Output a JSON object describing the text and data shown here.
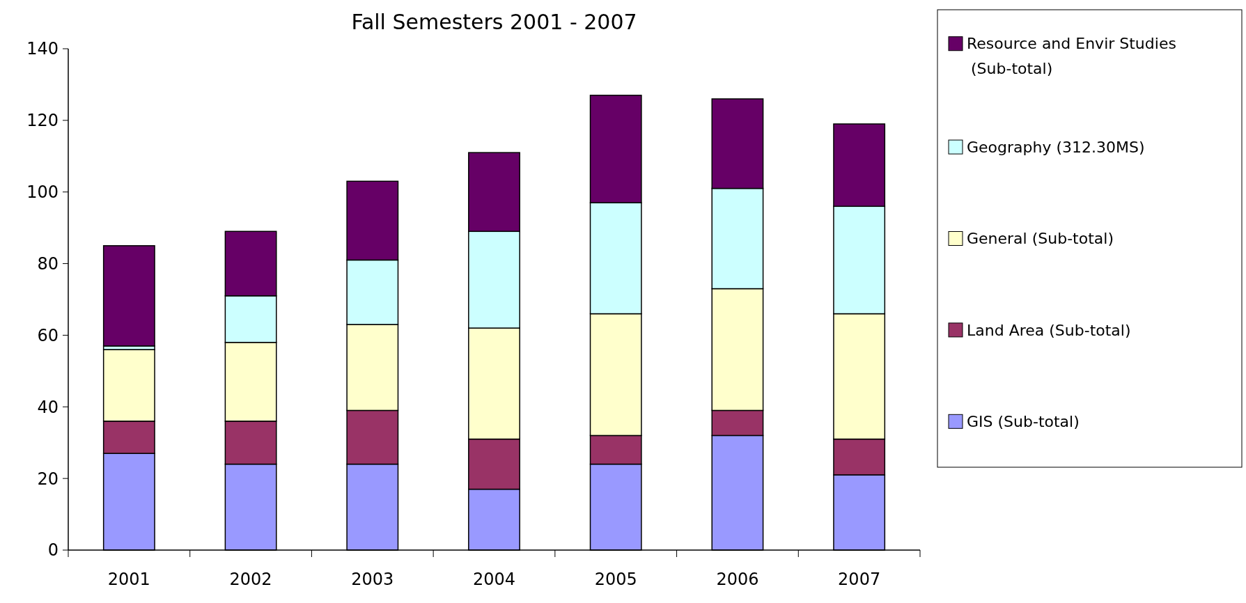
{
  "chart_data": {
    "type": "bar",
    "title": "Fall Semesters 2001 - 2007",
    "stacked": true,
    "categories": [
      "2001",
      "2002",
      "2003",
      "2004",
      "2005",
      "2006",
      "2007"
    ],
    "series": [
      {
        "name": "GIS (Sub-total)",
        "color": "#9999ff",
        "values": [
          27,
          24,
          24,
          17,
          24,
          32,
          21
        ]
      },
      {
        "name": "Land Area (Sub-total)",
        "color": "#993366",
        "values": [
          9,
          12,
          15,
          14,
          8,
          7,
          10
        ]
      },
      {
        "name": "General (Sub-total)",
        "color": "#ffffcc",
        "values": [
          20,
          22,
          24,
          31,
          34,
          34,
          35
        ]
      },
      {
        "name": "Geography (312.30MS)",
        "color": "#ccffff",
        "values": [
          1,
          13,
          18,
          27,
          31,
          28,
          30
        ]
      },
      {
        "name": "Resource and Envir Studies (Sub-total)",
        "color": "#660066",
        "values": [
          28,
          18,
          22,
          22,
          30,
          25,
          23
        ]
      }
    ],
    "ylim": [
      0,
      140
    ],
    "yticks": [
      0,
      20,
      40,
      60,
      80,
      100,
      120,
      140
    ],
    "grid": false,
    "legend": "right"
  }
}
